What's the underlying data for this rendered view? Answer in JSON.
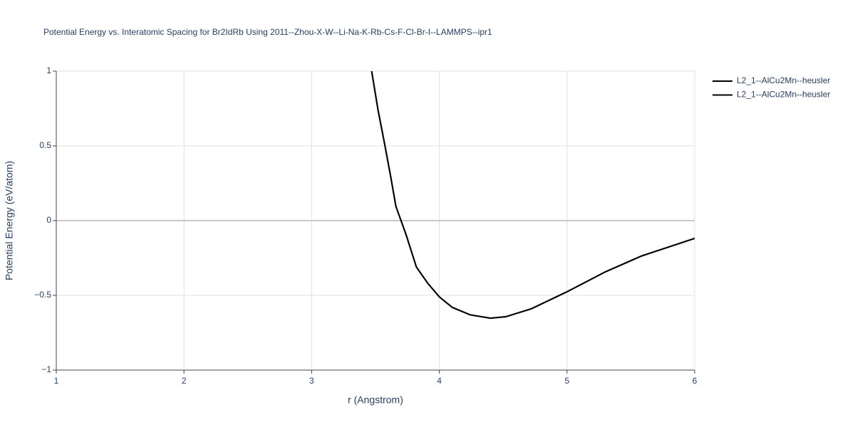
{
  "chart_data": {
    "type": "line",
    "title": "Potential Energy vs. Interatomic Spacing for Br2IdRb Using 2011--Zhou-X-W--Li-Na-K-Rb-Cs-F-Cl-Br-I--LAMMPS--ipr1",
    "x_label": "r (Angstrom)",
    "y_label": "Potential Energy (eV/atom)",
    "xlim": [
      1,
      6
    ],
    "xticks": [
      1,
      2,
      3,
      4,
      5,
      6
    ],
    "ylim": [
      -1,
      1
    ],
    "yticks": [
      {
        "value": -1,
        "label": "−1"
      },
      {
        "value": -0.5,
        "label": "−0.5"
      },
      0,
      0.5,
      1
    ],
    "grid": true,
    "legend_position": "top-right",
    "x": [
      3.47,
      3.52,
      3.57,
      3.62,
      3.66,
      3.74,
      3.82,
      3.91,
      4.0,
      4.1,
      4.24,
      4.4,
      4.52,
      4.72,
      5.0,
      5.3,
      5.58,
      5.83,
      6.0
    ],
    "series": [
      {
        "name": "L2_1--AlCu2Mn--heusler",
        "color": "#000000",
        "values": [
          1,
          0.74,
          0.52,
          0.29,
          0.095,
          -0.095,
          -0.31,
          -0.42,
          -0.51,
          -0.58,
          -0.63,
          -0.653,
          -0.643,
          -0.59,
          -0.476,
          -0.343,
          -0.238,
          -0.167,
          -0.119
        ]
      },
      {
        "name": "L2_1--AlCu2Mn--heusler",
        "color": "#000000",
        "values": [
          1,
          0.74,
          0.52,
          0.29,
          0.095,
          -0.095,
          -0.31,
          -0.42,
          -0.51,
          -0.58,
          -0.63,
          -0.653,
          -0.643,
          -0.59,
          -0.476,
          -0.343,
          -0.238,
          -0.167,
          -0.119
        ]
      }
    ]
  }
}
